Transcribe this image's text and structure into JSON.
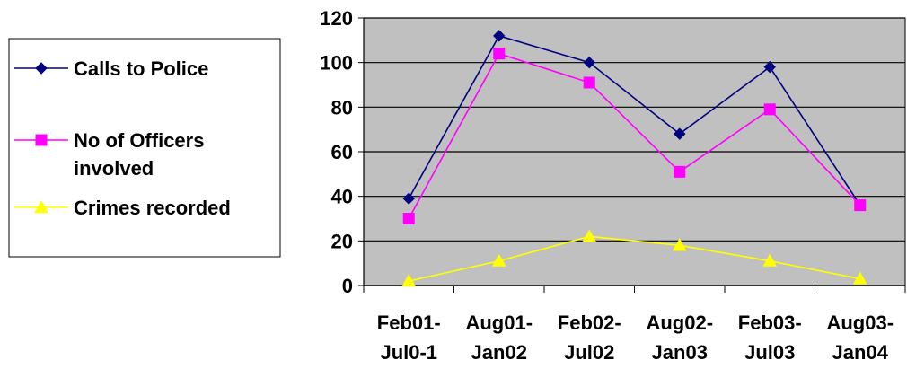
{
  "chart_data": {
    "type": "line",
    "categories": [
      [
        "Feb01-",
        "Jul0-1"
      ],
      [
        "Aug01-",
        "Jan02"
      ],
      [
        "Feb02-",
        "Jul02"
      ],
      [
        "Aug02-",
        "Jan03"
      ],
      [
        "Feb03-",
        "Jul03"
      ],
      [
        "Aug03-",
        "Jan04"
      ]
    ],
    "series": [
      {
        "name": [
          "Calls to Police"
        ],
        "values": [
          39,
          112,
          100,
          68,
          98,
          36
        ],
        "color": "#000080",
        "marker": "diamond"
      },
      {
        "name": [
          "No of Officers",
          "involved"
        ],
        "values": [
          30,
          104,
          91,
          51,
          79,
          36
        ],
        "color": "#ff00ff",
        "marker": "square"
      },
      {
        "name": [
          "Crimes recorded"
        ],
        "values": [
          2,
          11,
          22,
          18,
          11,
          3
        ],
        "color": "#ffff00",
        "marker": "triangle"
      }
    ],
    "yticks": [
      "0",
      "20",
      "40",
      "60",
      "80",
      "100",
      "120"
    ],
    "ylim": [
      0,
      120
    ],
    "grid": true,
    "plot_background": "#c0c0c0",
    "legend_position": "left"
  }
}
